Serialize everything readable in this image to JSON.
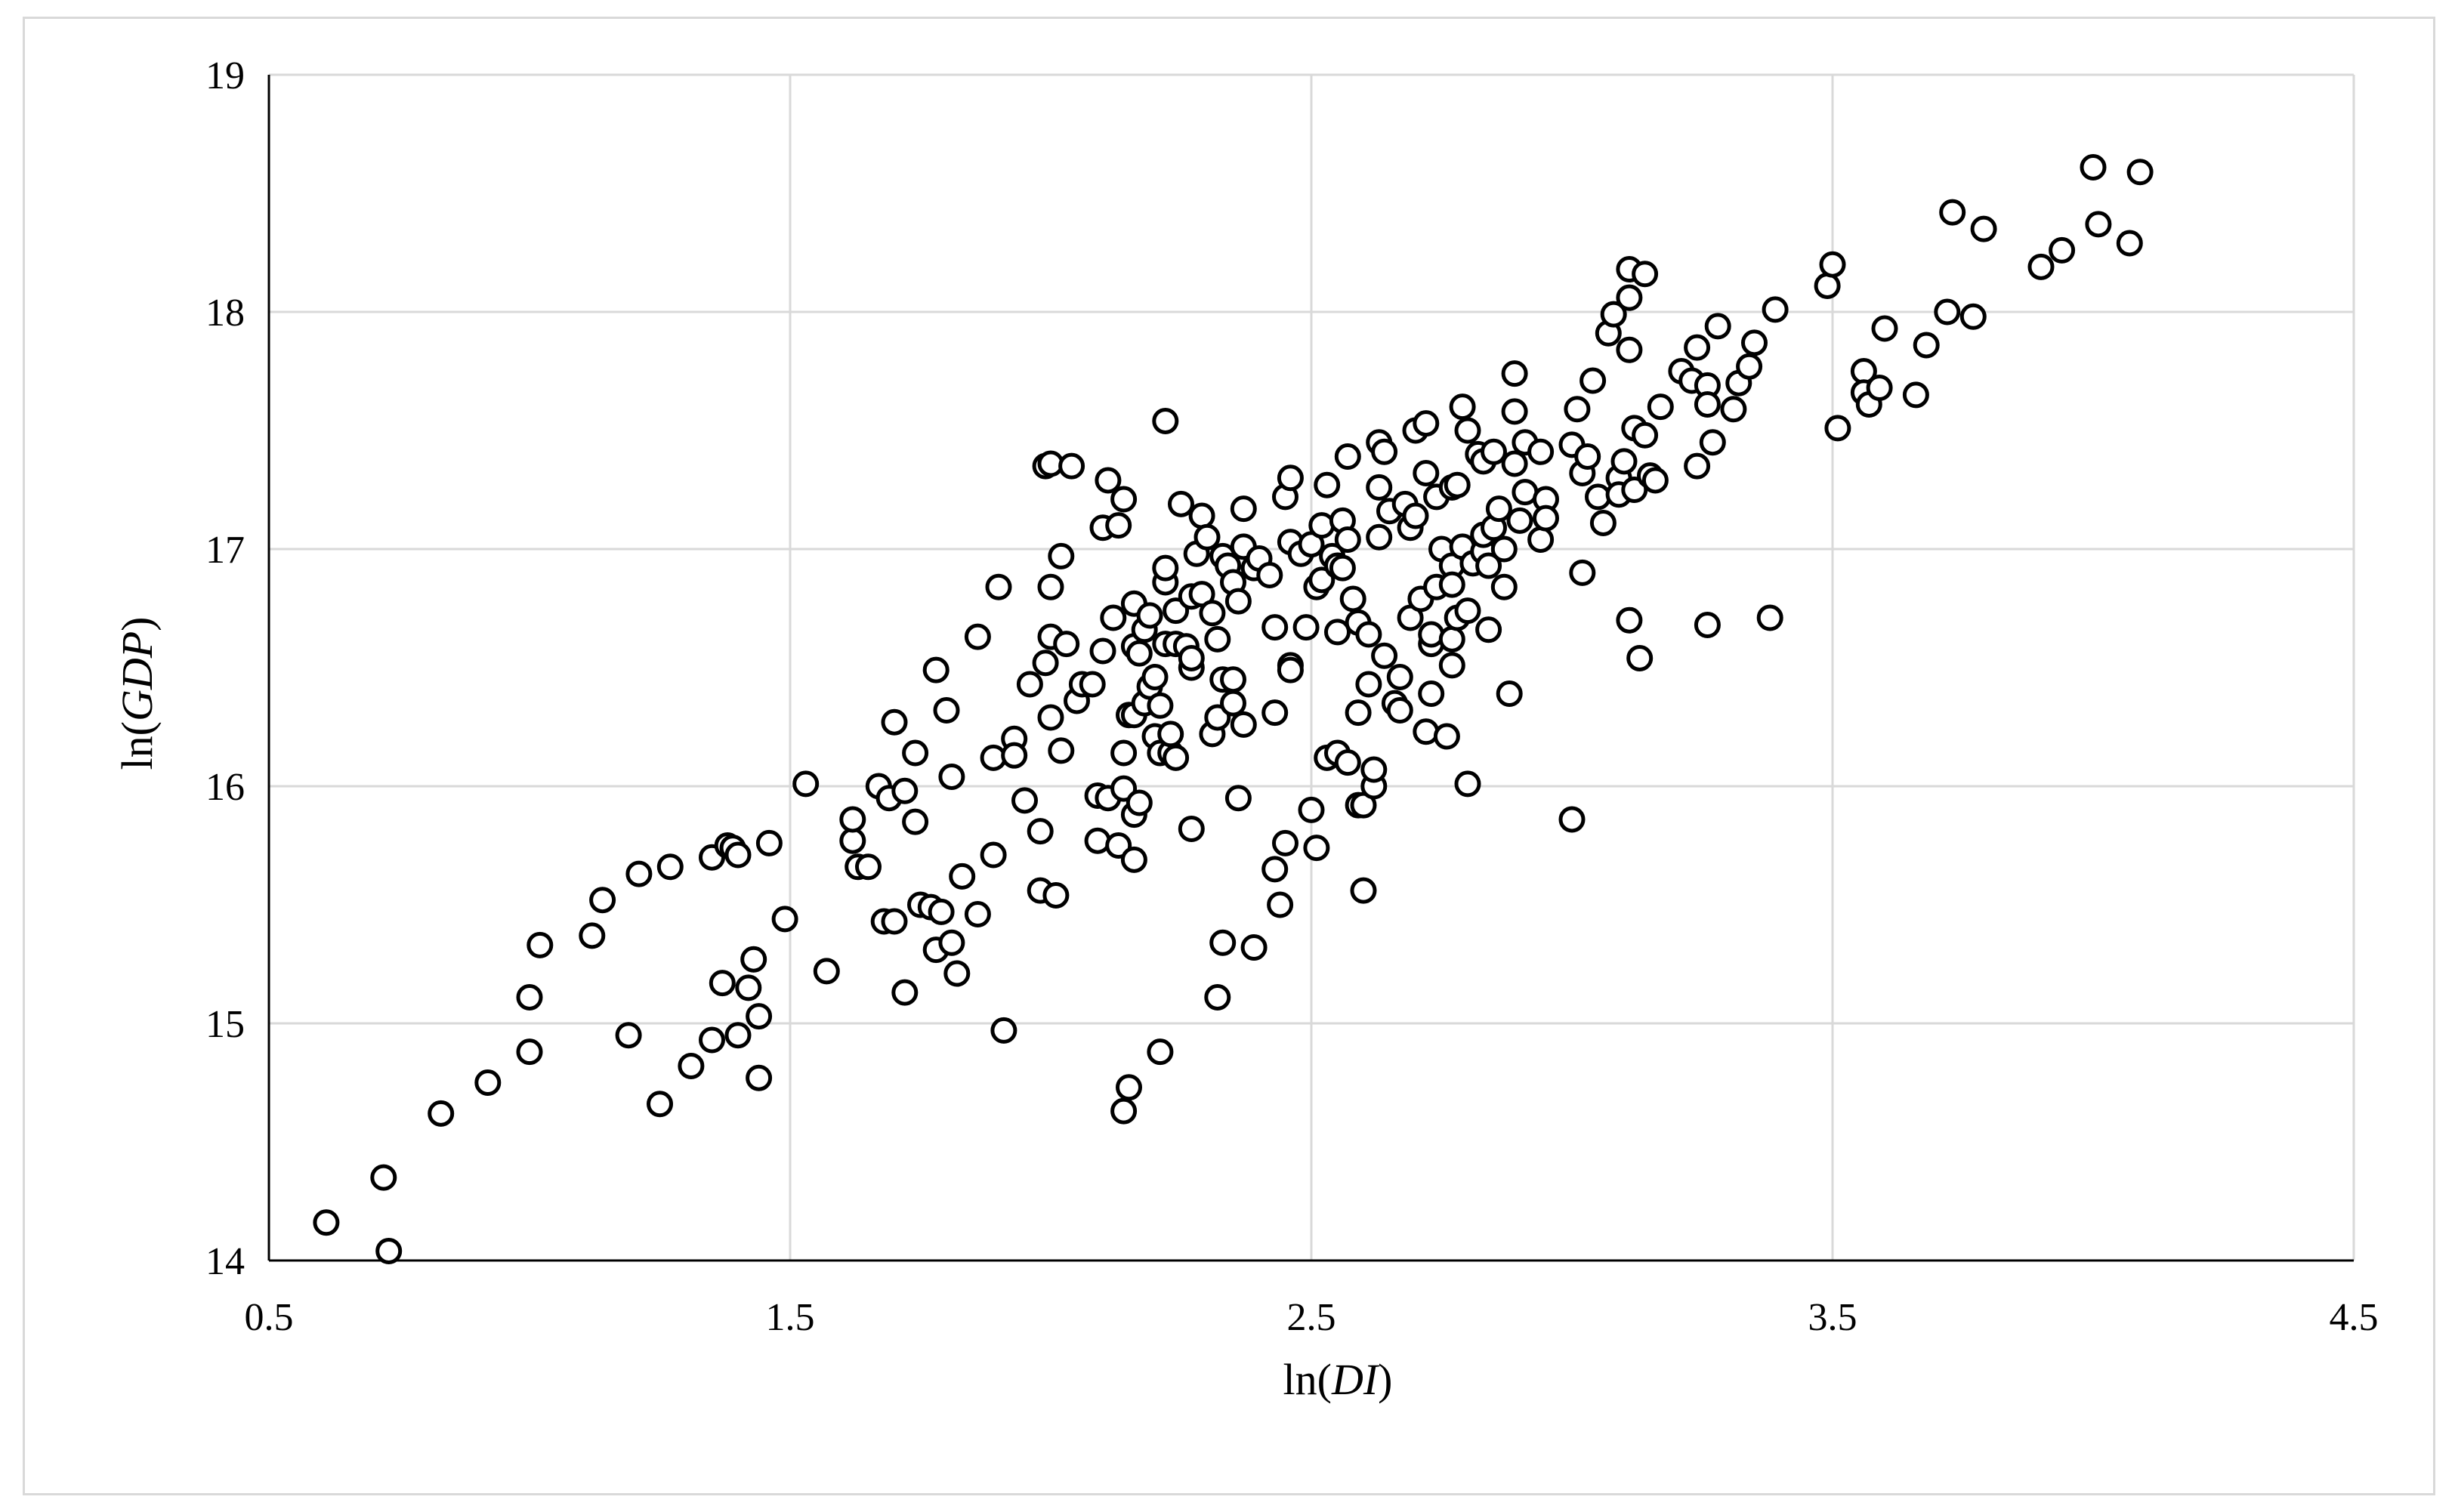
{
  "chart_data": {
    "type": "scatter",
    "title": "",
    "xlabel": {
      "prefix": "ln(",
      "italic": "DI",
      "suffix": ")"
    },
    "ylabel": {
      "prefix": "ln(",
      "italic": "GDP",
      "suffix": ")"
    },
    "xlim": [
      0.5,
      4.5
    ],
    "ylim": [
      14,
      19
    ],
    "xticks": [
      0.5,
      1.5,
      2.5,
      3.5,
      4.5
    ],
    "xtick_labels": [
      "0.5",
      "1.5",
      "2.5",
      "3.5",
      "4.5"
    ],
    "yticks": [
      14,
      15,
      16,
      17,
      18,
      19
    ],
    "ytick_labels": [
      "14",
      "15",
      "16",
      "17",
      "18",
      "19"
    ],
    "grid": true,
    "legend": "none",
    "marker": "open-circle",
    "colors": {
      "marker_edge": "#000000",
      "marker_fill": "#ffffff",
      "grid": "#d9d9d9",
      "frame": "#d9d9d9"
    },
    "points": [
      [
        0.61,
        14.16
      ],
      [
        0.72,
        14.35
      ],
      [
        0.73,
        14.04
      ],
      [
        0.83,
        14.62
      ],
      [
        0.92,
        14.75
      ],
      [
        1.0,
        14.88
      ],
      [
        1.0,
        15.11
      ],
      [
        1.02,
        15.33
      ],
      [
        1.12,
        15.37
      ],
      [
        1.14,
        15.52
      ],
      [
        1.19,
        14.95
      ],
      [
        1.21,
        15.63
      ],
      [
        1.25,
        14.66
      ],
      [
        1.27,
        15.66
      ],
      [
        1.31,
        14.82
      ],
      [
        1.35,
        14.93
      ],
      [
        1.35,
        15.7
      ],
      [
        1.37,
        15.17
      ],
      [
        1.38,
        15.75
      ],
      [
        1.39,
        15.74
      ],
      [
        1.4,
        14.95
      ],
      [
        1.4,
        15.71
      ],
      [
        1.42,
        15.15
      ],
      [
        1.43,
        15.27
      ],
      [
        1.44,
        15.03
      ],
      [
        1.44,
        14.77
      ],
      [
        1.46,
        15.76
      ],
      [
        1.49,
        15.44
      ],
      [
        1.53,
        16.01
      ],
      [
        1.57,
        15.22
      ],
      [
        1.62,
        15.77
      ],
      [
        1.62,
        15.86
      ],
      [
        1.63,
        15.66
      ],
      [
        1.65,
        15.66
      ],
      [
        1.67,
        16.0
      ],
      [
        1.68,
        15.43
      ],
      [
        1.69,
        15.95
      ],
      [
        1.7,
        16.27
      ],
      [
        1.7,
        15.43
      ],
      [
        1.72,
        15.13
      ],
      [
        1.72,
        15.98
      ],
      [
        1.74,
        15.85
      ],
      [
        1.74,
        16.14
      ],
      [
        1.75,
        15.5
      ],
      [
        1.77,
        15.49
      ],
      [
        1.78,
        15.31
      ],
      [
        1.78,
        16.49
      ],
      [
        1.79,
        15.47
      ],
      [
        1.8,
        16.32
      ],
      [
        1.81,
        15.34
      ],
      [
        1.81,
        16.04
      ],
      [
        1.82,
        15.21
      ],
      [
        1.83,
        15.62
      ],
      [
        1.86,
        15.46
      ],
      [
        1.86,
        16.63
      ],
      [
        1.89,
        16.12
      ],
      [
        1.89,
        15.71
      ],
      [
        1.9,
        16.84
      ],
      [
        1.91,
        14.97
      ],
      [
        1.93,
        16.2
      ],
      [
        1.93,
        16.13
      ],
      [
        1.95,
        15.94
      ],
      [
        1.96,
        16.43
      ],
      [
        1.98,
        15.56
      ],
      [
        1.98,
        15.81
      ],
      [
        1.99,
        17.35
      ],
      [
        1.99,
        16.52
      ],
      [
        2.0,
        17.36
      ],
      [
        2.0,
        16.84
      ],
      [
        2.0,
        16.63
      ],
      [
        2.0,
        16.29
      ],
      [
        2.01,
        15.54
      ],
      [
        2.02,
        16.15
      ],
      [
        2.02,
        16.97
      ],
      [
        2.03,
        16.6
      ],
      [
        2.04,
        17.35
      ],
      [
        2.05,
        16.36
      ],
      [
        2.06,
        16.43
      ],
      [
        2.08,
        16.43
      ],
      [
        2.09,
        15.96
      ],
      [
        2.09,
        15.77
      ],
      [
        2.1,
        17.09
      ],
      [
        2.1,
        16.57
      ],
      [
        2.11,
        17.29
      ],
      [
        2.11,
        15.95
      ],
      [
        2.12,
        16.71
      ],
      [
        2.13,
        17.1
      ],
      [
        2.13,
        15.75
      ],
      [
        2.14,
        17.21
      ],
      [
        2.14,
        16.14
      ],
      [
        2.14,
        15.99
      ],
      [
        2.14,
        14.63
      ],
      [
        2.15,
        14.73
      ],
      [
        2.15,
        16.3
      ],
      [
        2.16,
        16.77
      ],
      [
        2.16,
        16.59
      ],
      [
        2.16,
        16.3
      ],
      [
        2.16,
        15.88
      ],
      [
        2.16,
        15.69
      ],
      [
        2.17,
        16.56
      ],
      [
        2.17,
        15.93
      ],
      [
        2.18,
        16.66
      ],
      [
        2.18,
        16.35
      ],
      [
        2.19,
        16.72
      ],
      [
        2.19,
        16.42
      ],
      [
        2.2,
        16.46
      ],
      [
        2.2,
        16.21
      ],
      [
        2.21,
        16.14
      ],
      [
        2.21,
        14.88
      ],
      [
        2.21,
        16.34
      ],
      [
        2.22,
        16.86
      ],
      [
        2.22,
        16.92
      ],
      [
        2.22,
        16.6
      ],
      [
        2.22,
        17.54
      ],
      [
        2.23,
        16.14
      ],
      [
        2.23,
        16.22
      ],
      [
        2.24,
        16.74
      ],
      [
        2.24,
        16.6
      ],
      [
        2.24,
        16.12
      ],
      [
        2.25,
        17.19
      ],
      [
        2.26,
        16.59
      ],
      [
        2.27,
        16.8
      ],
      [
        2.27,
        16.5
      ],
      [
        2.27,
        16.54
      ],
      [
        2.27,
        15.82
      ],
      [
        2.28,
        16.98
      ],
      [
        2.29,
        16.81
      ],
      [
        2.29,
        17.14
      ],
      [
        2.3,
        17.05
      ],
      [
        2.31,
        16.22
      ],
      [
        2.31,
        16.73
      ],
      [
        2.32,
        16.62
      ],
      [
        2.32,
        15.11
      ],
      [
        2.32,
        16.29
      ],
      [
        2.33,
        16.97
      ],
      [
        2.33,
        16.45
      ],
      [
        2.33,
        15.34
      ],
      [
        2.34,
        16.93
      ],
      [
        2.35,
        16.45
      ],
      [
        2.35,
        16.86
      ],
      [
        2.35,
        16.35
      ],
      [
        2.36,
        16.78
      ],
      [
        2.36,
        15.95
      ],
      [
        2.37,
        17.17
      ],
      [
        2.37,
        17.01
      ],
      [
        2.37,
        16.26
      ],
      [
        2.39,
        15.32
      ],
      [
        2.39,
        16.92
      ],
      [
        2.4,
        16.96
      ],
      [
        2.42,
        16.89
      ],
      [
        2.43,
        16.31
      ],
      [
        2.43,
        15.65
      ],
      [
        2.43,
        16.67
      ],
      [
        2.44,
        15.5
      ],
      [
        2.45,
        15.76
      ],
      [
        2.45,
        17.22
      ],
      [
        2.46,
        17.3
      ],
      [
        2.46,
        17.03
      ],
      [
        2.46,
        16.51
      ],
      [
        2.46,
        16.49
      ],
      [
        2.48,
        16.98
      ],
      [
        2.49,
        16.67
      ],
      [
        2.5,
        15.9
      ],
      [
        2.5,
        17.02
      ],
      [
        2.51,
        15.74
      ],
      [
        2.51,
        16.84
      ],
      [
        2.52,
        16.87
      ],
      [
        2.52,
        17.1
      ],
      [
        2.53,
        17.27
      ],
      [
        2.53,
        16.12
      ],
      [
        2.54,
        16.97
      ],
      [
        2.55,
        16.14
      ],
      [
        2.55,
        16.93
      ],
      [
        2.55,
        16.65
      ],
      [
        2.56,
        17.12
      ],
      [
        2.56,
        16.92
      ],
      [
        2.57,
        17.39
      ],
      [
        2.57,
        17.04
      ],
      [
        2.57,
        16.1
      ],
      [
        2.58,
        16.79
      ],
      [
        2.59,
        15.92
      ],
      [
        2.59,
        16.69
      ],
      [
        2.59,
        16.31
      ],
      [
        2.6,
        15.56
      ],
      [
        2.6,
        15.92
      ],
      [
        2.61,
        16.64
      ],
      [
        2.61,
        16.43
      ],
      [
        2.62,
        16.0
      ],
      [
        2.62,
        16.07
      ],
      [
        2.63,
        17.26
      ],
      [
        2.63,
        17.45
      ],
      [
        2.63,
        17.05
      ],
      [
        2.64,
        16.55
      ],
      [
        2.64,
        17.41
      ],
      [
        2.65,
        17.16
      ],
      [
        2.66,
        16.35
      ],
      [
        2.67,
        16.46
      ],
      [
        2.67,
        16.32
      ],
      [
        2.68,
        17.19
      ],
      [
        2.69,
        17.09
      ],
      [
        2.69,
        16.71
      ],
      [
        2.7,
        17.5
      ],
      [
        2.7,
        17.14
      ],
      [
        2.71,
        16.79
      ],
      [
        2.72,
        17.53
      ],
      [
        2.72,
        17.32
      ],
      [
        2.72,
        16.23
      ],
      [
        2.73,
        16.6
      ],
      [
        2.73,
        16.64
      ],
      [
        2.73,
        16.39
      ],
      [
        2.74,
        17.22
      ],
      [
        2.74,
        16.84
      ],
      [
        2.75,
        17.0
      ],
      [
        2.76,
        16.21
      ],
      [
        2.77,
        16.62
      ],
      [
        2.77,
        16.93
      ],
      [
        2.77,
        16.85
      ],
      [
        2.77,
        16.51
      ],
      [
        2.77,
        17.26
      ],
      [
        2.78,
        17.27
      ],
      [
        2.78,
        16.71
      ],
      [
        2.79,
        17.6
      ],
      [
        2.79,
        17.01
      ],
      [
        2.8,
        17.5
      ],
      [
        2.8,
        16.74
      ],
      [
        2.8,
        16.01
      ],
      [
        2.81,
        16.94
      ],
      [
        2.82,
        17.4
      ],
      [
        2.83,
        17.37
      ],
      [
        2.83,
        16.99
      ],
      [
        2.83,
        17.06
      ],
      [
        2.84,
        16.66
      ],
      [
        2.84,
        16.93
      ],
      [
        2.85,
        17.41
      ],
      [
        2.85,
        17.09
      ],
      [
        2.86,
        17.17
      ],
      [
        2.87,
        16.84
      ],
      [
        2.87,
        17.0
      ],
      [
        2.88,
        16.39
      ],
      [
        2.89,
        17.74
      ],
      [
        2.89,
        17.36
      ],
      [
        2.89,
        17.58
      ],
      [
        2.9,
        17.12
      ],
      [
        2.91,
        17.45
      ],
      [
        2.91,
        17.24
      ],
      [
        2.94,
        17.41
      ],
      [
        2.94,
        17.04
      ],
      [
        2.95,
        17.21
      ],
      [
        2.95,
        17.13
      ],
      [
        3.0,
        17.44
      ],
      [
        3.0,
        15.86
      ],
      [
        3.01,
        17.59
      ],
      [
        3.02,
        16.9
      ],
      [
        3.02,
        17.32
      ],
      [
        3.03,
        17.39
      ],
      [
        3.04,
        17.71
      ],
      [
        3.05,
        17.22
      ],
      [
        3.06,
        17.11
      ],
      [
        3.07,
        17.91
      ],
      [
        3.08,
        17.99
      ],
      [
        3.09,
        17.3
      ],
      [
        3.09,
        17.23
      ],
      [
        3.1,
        17.37
      ],
      [
        3.11,
        18.06
      ],
      [
        3.11,
        18.18
      ],
      [
        3.11,
        16.7
      ],
      [
        3.11,
        17.84
      ],
      [
        3.12,
        17.51
      ],
      [
        3.12,
        17.25
      ],
      [
        3.13,
        16.54
      ],
      [
        3.14,
        18.16
      ],
      [
        3.14,
        17.48
      ],
      [
        3.15,
        17.31
      ],
      [
        3.16,
        17.29
      ],
      [
        3.17,
        17.6
      ],
      [
        3.21,
        17.75
      ],
      [
        3.23,
        17.71
      ],
      [
        3.24,
        17.85
      ],
      [
        3.24,
        17.35
      ],
      [
        3.26,
        17.69
      ],
      [
        3.26,
        17.61
      ],
      [
        3.26,
        16.68
      ],
      [
        3.27,
        17.45
      ],
      [
        3.28,
        17.94
      ],
      [
        3.31,
        17.59
      ],
      [
        3.32,
        17.7
      ],
      [
        3.34,
        17.77
      ],
      [
        3.35,
        17.87
      ],
      [
        3.38,
        16.71
      ],
      [
        3.39,
        18.01
      ],
      [
        3.49,
        18.11
      ],
      [
        3.5,
        18.2
      ],
      [
        3.51,
        17.51
      ],
      [
        3.56,
        17.75
      ],
      [
        3.56,
        17.66
      ],
      [
        3.57,
        17.61
      ],
      [
        3.59,
        17.68
      ],
      [
        3.6,
        17.93
      ],
      [
        3.66,
        17.65
      ],
      [
        3.68,
        17.86
      ],
      [
        3.72,
        18.0
      ],
      [
        3.73,
        18.42
      ],
      [
        3.77,
        17.98
      ],
      [
        3.79,
        18.35
      ],
      [
        3.9,
        18.19
      ],
      [
        3.94,
        18.26
      ],
      [
        4.0,
        18.61
      ],
      [
        4.01,
        18.37
      ],
      [
        4.07,
        18.29
      ],
      [
        4.09,
        18.59
      ]
    ]
  }
}
